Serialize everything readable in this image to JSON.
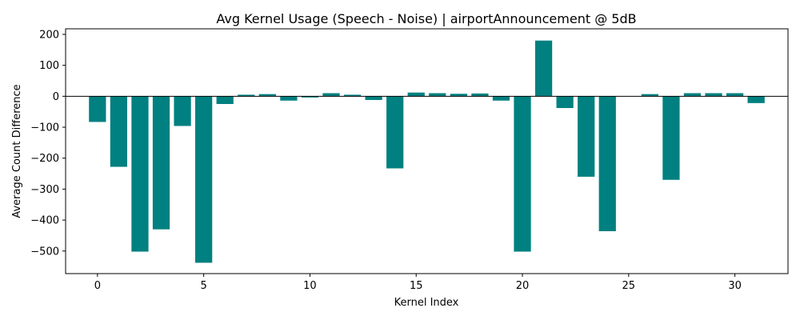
{
  "chart_data": {
    "type": "bar",
    "title": "Avg Kernel Usage (Speech - Noise) | airportAnnouncement @ 5dB",
    "xlabel": "Kernel Index",
    "ylabel": "Average Count Difference",
    "xlim": [
      -1.5,
      32.5
    ],
    "ylim": [
      -573,
      218
    ],
    "x_ticks": [
      0,
      5,
      10,
      15,
      20,
      25,
      30
    ],
    "y_ticks": [
      -500,
      -400,
      -300,
      -200,
      -100,
      0,
      100,
      200
    ],
    "x_tick_labels": [
      "0",
      "5",
      "10",
      "15",
      "20",
      "25",
      "30"
    ],
    "y_tick_labels": [
      "−500",
      "−400",
      "−300",
      "−200",
      "−100",
      "0",
      "100",
      "200"
    ],
    "bar_width": 0.8,
    "bar_color": "#008080",
    "zero_line": true,
    "grid": false,
    "x": [
      0,
      1,
      2,
      3,
      4,
      5,
      6,
      7,
      8,
      9,
      10,
      11,
      12,
      13,
      14,
      15,
      16,
      17,
      18,
      19,
      20,
      21,
      22,
      23,
      24,
      25,
      26,
      27,
      28,
      29,
      30,
      31
    ],
    "values": [
      -83,
      -228,
      -502,
      -430,
      -96,
      -538,
      -25,
      5,
      7,
      -14,
      -4,
      10,
      5,
      -12,
      -233,
      12,
      10,
      8,
      9,
      -14,
      -502,
      180,
      -38,
      -260,
      -436,
      0,
      7,
      -270,
      10,
      10,
      10,
      -22
    ]
  }
}
